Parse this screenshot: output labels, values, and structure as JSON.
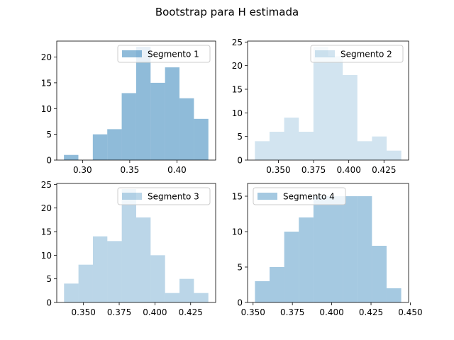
{
  "figure": {
    "title": "Bootstrap para H estimada"
  },
  "chart_data": [
    {
      "type": "histogram",
      "legend": "Segmento 1",
      "legend_position": "upper right",
      "color": "#1f77b4",
      "alpha": 0.5,
      "bin_edges": [
        0.2803,
        0.2956,
        0.3109,
        0.3262,
        0.3415,
        0.3568,
        0.3721,
        0.3874,
        0.4027,
        0.418,
        0.4333
      ],
      "counts": [
        1,
        0,
        5,
        6,
        13,
        22,
        15,
        18,
        12,
        8
      ],
      "xlim": [
        0.2727,
        0.441
      ],
      "ylim": [
        0,
        23.1
      ],
      "xticks": [
        {
          "v": 0.3,
          "label": "0.30"
        },
        {
          "v": 0.35,
          "label": "0.35"
        },
        {
          "v": 0.4,
          "label": "0.40"
        }
      ],
      "yticks": [
        {
          "v": 0,
          "label": "0"
        },
        {
          "v": 5,
          "label": "5"
        },
        {
          "v": 10,
          "label": "10"
        },
        {
          "v": 15,
          "label": "15"
        },
        {
          "v": 20,
          "label": "20"
        }
      ]
    },
    {
      "type": "histogram",
      "legend": "Segmento 2",
      "legend_position": "upper right",
      "color": "#1f77b4",
      "alpha": 0.2,
      "bin_edges": [
        0.3333,
        0.3437,
        0.3541,
        0.3645,
        0.3749,
        0.3853,
        0.3957,
        0.4061,
        0.4165,
        0.4269,
        0.4373
      ],
      "counts": [
        4,
        6,
        9,
        6,
        24,
        22,
        18,
        4,
        5,
        2
      ],
      "xlim": [
        0.3281,
        0.4425
      ],
      "ylim": [
        0,
        25.2
      ],
      "xticks": [
        {
          "v": 0.35,
          "label": "0.350"
        },
        {
          "v": 0.375,
          "label": "0.375"
        },
        {
          "v": 0.4,
          "label": "0.400"
        },
        {
          "v": 0.425,
          "label": "0.425"
        }
      ],
      "yticks": [
        {
          "v": 0,
          "label": "0"
        },
        {
          "v": 5,
          "label": "5"
        },
        {
          "v": 10,
          "label": "10"
        },
        {
          "v": 15,
          "label": "15"
        },
        {
          "v": 20,
          "label": "20"
        },
        {
          "v": 25,
          "label": "25"
        }
      ]
    },
    {
      "type": "histogram",
      "legend": "Segmento 3",
      "legend_position": "upper right",
      "color": "#1f77b4",
      "alpha": 0.3,
      "bin_edges": [
        0.3364,
        0.3465,
        0.3566,
        0.3667,
        0.3768,
        0.3869,
        0.397,
        0.4071,
        0.4172,
        0.4273,
        0.4374
      ],
      "counts": [
        4,
        8,
        14,
        13,
        24,
        18,
        10,
        2,
        5,
        2
      ],
      "xlim": [
        0.3313,
        0.4425
      ],
      "ylim": [
        0,
        25.2
      ],
      "xticks": [
        {
          "v": 0.35,
          "label": "0.350"
        },
        {
          "v": 0.375,
          "label": "0.375"
        },
        {
          "v": 0.4,
          "label": "0.400"
        },
        {
          "v": 0.425,
          "label": "0.425"
        }
      ],
      "yticks": [
        {
          "v": 0,
          "label": "0"
        },
        {
          "v": 5,
          "label": "5"
        },
        {
          "v": 10,
          "label": "10"
        },
        {
          "v": 15,
          "label": "15"
        },
        {
          "v": 20,
          "label": "20"
        },
        {
          "v": 25,
          "label": "25"
        }
      ]
    },
    {
      "type": "histogram",
      "legend": "Segmento 4",
      "legend_position": "upper left",
      "color": "#1f77b4",
      "alpha": 0.4,
      "bin_edges": [
        0.3512,
        0.3605,
        0.3698,
        0.3791,
        0.3884,
        0.3977,
        0.407,
        0.4163,
        0.4256,
        0.4349,
        0.4442
      ],
      "counts": [
        3,
        5,
        10,
        12,
        15,
        15,
        15,
        15,
        8,
        2
      ],
      "xlim": [
        0.3465,
        0.4489
      ],
      "ylim": [
        0,
        16.8
      ],
      "xticks": [
        {
          "v": 0.35,
          "label": "0.350"
        },
        {
          "v": 0.375,
          "label": "0.375"
        },
        {
          "v": 0.4,
          "label": "0.400"
        },
        {
          "v": 0.425,
          "label": "0.425"
        },
        {
          "v": 0.45,
          "label": "0.450"
        }
      ],
      "yticks": [
        {
          "v": 0,
          "label": "0"
        },
        {
          "v": 5,
          "label": "5"
        },
        {
          "v": 10,
          "label": "10"
        },
        {
          "v": 15,
          "label": "15"
        }
      ]
    }
  ]
}
